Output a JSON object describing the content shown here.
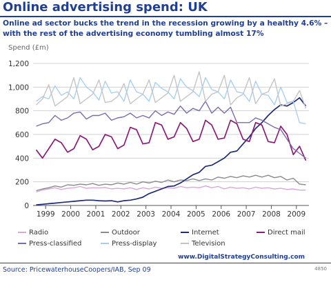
{
  "title": "Online advertising spend: UK",
  "subtitle": "Online ad sector bucks the trend in the recession growing by a healthy 4.6% – with the rest of the advertising economy tumbling almost 17%",
  "footer": {
    "url": "www.DigitalStrategyConsulting.com",
    "source": "Source: PricewaterhouseCoopers/IAB, Sep 09",
    "code": "4850"
  },
  "chart_data": {
    "type": "line",
    "ylabel": "Spend (£m)",
    "xlabel": "",
    "ylim": [
      0,
      1200
    ],
    "yticks": [
      "0",
      "200",
      "400",
      "600",
      "800",
      "1,000",
      "1,200"
    ],
    "xlim": [
      1998.5,
      2009.5
    ],
    "categories": [
      "1999",
      "2000",
      "2001",
      "2002",
      "2003",
      "2004",
      "2005",
      "2006",
      "2007",
      "2008",
      "2009"
    ],
    "x": [
      1998.625,
      1998.875,
      1999.125,
      1999.375,
      1999.625,
      1999.875,
      2000.125,
      2000.375,
      2000.625,
      2000.875,
      2001.125,
      2001.375,
      2001.625,
      2001.875,
      2002.125,
      2002.375,
      2002.625,
      2002.875,
      2003.125,
      2003.375,
      2003.625,
      2003.875,
      2004.125,
      2004.375,
      2004.625,
      2004.875,
      2005.125,
      2005.375,
      2005.625,
      2005.875,
      2006.125,
      2006.375,
      2006.625,
      2006.875,
      2007.125,
      2007.375,
      2007.625,
      2007.875,
      2008.125,
      2008.375,
      2008.625,
      2008.875,
      2009.125,
      2009.375
    ],
    "legend_position": "bottom",
    "grid": true,
    "series": [
      {
        "name": "Radio",
        "color": "#d9a6d9",
        "values": [
          115,
          130,
          140,
          150,
          135,
          145,
          150,
          160,
          145,
          150,
          148,
          152,
          140,
          145,
          140,
          150,
          135,
          150,
          140,
          155,
          145,
          150,
          145,
          160,
          150,
          155,
          150,
          165,
          150,
          160,
          140,
          155,
          145,
          150,
          140,
          155,
          145,
          150,
          140,
          145,
          135,
          140,
          130,
          130
        ]
      },
      {
        "name": "Outdoor",
        "color": "#8a8a8a",
        "values": [
          125,
          140,
          150,
          165,
          155,
          175,
          170,
          180,
          175,
          185,
          170,
          180,
          175,
          190,
          180,
          195,
          180,
          200,
          190,
          205,
          195,
          215,
          200,
          215,
          210,
          225,
          210,
          225,
          215,
          240,
          230,
          245,
          235,
          250,
          240,
          255,
          240,
          255,
          235,
          245,
          215,
          230,
          180,
          175
        ]
      },
      {
        "name": "Internet",
        "color": "#1c2a7a",
        "values": [
          5,
          10,
          15,
          20,
          25,
          30,
          35,
          40,
          45,
          45,
          40,
          38,
          40,
          30,
          40,
          45,
          55,
          70,
          100,
          120,
          140,
          160,
          165,
          190,
          225,
          260,
          280,
          330,
          340,
          370,
          400,
          450,
          460,
          520,
          580,
          650,
          700,
          760,
          810,
          850,
          840,
          870,
          910,
          840
        ]
      },
      {
        "name": "Direct mail",
        "color": "#8c1a7a",
        "values": [
          470,
          400,
          480,
          560,
          530,
          450,
          480,
          590,
          560,
          470,
          500,
          600,
          580,
          480,
          510,
          660,
          640,
          520,
          530,
          700,
          680,
          560,
          580,
          700,
          650,
          540,
          560,
          720,
          680,
          560,
          570,
          720,
          690,
          560,
          540,
          700,
          680,
          540,
          530,
          670,
          600,
          430,
          500,
          380
        ]
      },
      {
        "name": "Press-classified",
        "color": "#7c6aa8",
        "values": [
          670,
          690,
          700,
          760,
          720,
          740,
          780,
          790,
          730,
          760,
          760,
          780,
          720,
          740,
          750,
          780,
          740,
          760,
          740,
          800,
          760,
          790,
          770,
          840,
          780,
          820,
          800,
          880,
          780,
          830,
          780,
          830,
          700,
          700,
          700,
          740,
          720,
          690,
          660,
          640,
          560,
          480,
          440,
          400
        ]
      },
      {
        "name": "Press-display",
        "color": "#a8d0ee",
        "values": [
          880,
          920,
          900,
          1010,
          930,
          960,
          900,
          1080,
          1000,
          960,
          890,
          1050,
          950,
          960,
          880,
          1060,
          960,
          940,
          880,
          1040,
          990,
          960,
          900,
          1070,
          1000,
          970,
          920,
          1080,
          980,
          960,
          900,
          1060,
          960,
          950,
          880,
          1050,
          940,
          930,
          850,
          1000,
          870,
          880,
          700,
          690
        ]
      },
      {
        "name": "Television",
        "color": "#c4c4c4",
        "values": [
          850,
          900,
          1020,
          840,
          880,
          920,
          1080,
          860,
          900,
          940,
          1060,
          870,
          880,
          920,
          1030,
          860,
          900,
          940,
          1060,
          870,
          910,
          950,
          1100,
          880,
          920,
          960,
          1130,
          880,
          940,
          960,
          1100,
          850,
          910,
          940,
          1080,
          860,
          940,
          960,
          1070,
          840,
          860,
          880,
          970,
          820
        ]
      }
    ]
  }
}
